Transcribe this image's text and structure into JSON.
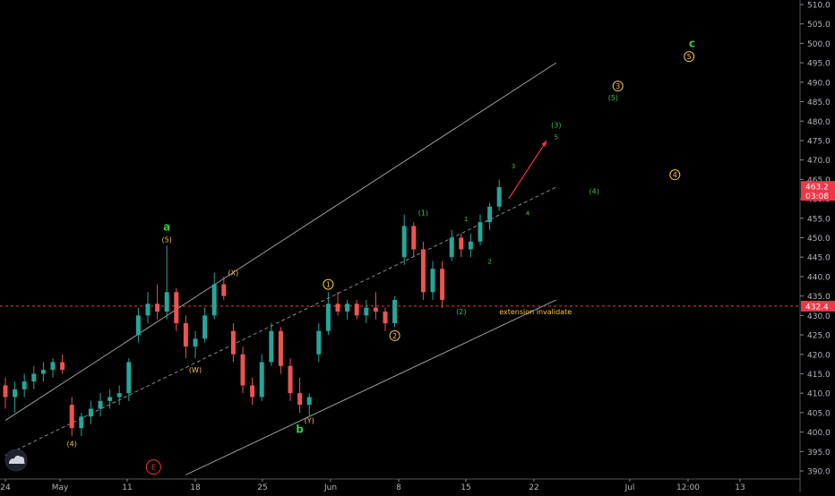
{
  "chart_data": {
    "type": "candlestick",
    "instrument_note": "daily-like price chart with Elliott wave annotations",
    "y_axis": {
      "ticks": [
        390,
        395,
        400,
        405,
        410,
        415,
        420,
        425,
        430,
        435,
        440,
        445,
        450,
        455,
        460,
        465,
        470,
        475,
        480,
        485,
        490,
        495,
        500,
        505,
        510
      ],
      "tick_labels": [
        "390.0",
        "395.0",
        "400.0",
        "405.0",
        "410.0",
        "415.0",
        "420.0",
        "425.0",
        "430.0",
        "435.0",
        "440.0",
        "445.0",
        "450.0",
        "455.0",
        "460.0",
        "465.0",
        "470.0",
        "475.0",
        "480.0",
        "485.0",
        "490.0",
        "495.0",
        "500.0",
        "505.0",
        "510.0"
      ],
      "range": [
        389,
        511
      ]
    },
    "x_axis": {
      "tick_labels": [
        "24",
        "May",
        "11",
        "18",
        "25",
        "Jun",
        "8",
        "15",
        "22",
        "Jul",
        "12:00",
        "13"
      ]
    },
    "last_price": {
      "value": 463.2,
      "label": "463.2",
      "countdown": "03:08"
    },
    "horizontal_level": {
      "value": 432.4,
      "label": "432.4"
    },
    "candles": [
      {
        "t": 0,
        "o": 412,
        "h": 414,
        "l": 406,
        "c": 409
      },
      {
        "t": 1,
        "o": 409,
        "h": 413,
        "l": 405,
        "c": 411
      },
      {
        "t": 2,
        "o": 411,
        "h": 415,
        "l": 409,
        "c": 413
      },
      {
        "t": 3,
        "o": 413,
        "h": 417,
        "l": 411,
        "c": 415
      },
      {
        "t": 4,
        "o": 415,
        "h": 418,
        "l": 413,
        "c": 416
      },
      {
        "t": 5,
        "o": 416,
        "h": 419,
        "l": 414,
        "c": 418
      },
      {
        "t": 6,
        "o": 418,
        "h": 420,
        "l": 415,
        "c": 416
      },
      {
        "t": 7,
        "o": 407,
        "h": 409,
        "l": 399,
        "c": 401
      },
      {
        "t": 8,
        "o": 401,
        "h": 405,
        "l": 399,
        "c": 404
      },
      {
        "t": 9,
        "o": 404,
        "h": 408,
        "l": 402,
        "c": 406
      },
      {
        "t": 10,
        "o": 406,
        "h": 410,
        "l": 404,
        "c": 408
      },
      {
        "t": 11,
        "o": 408,
        "h": 411,
        "l": 406,
        "c": 409
      },
      {
        "t": 12,
        "o": 409,
        "h": 412,
        "l": 407,
        "c": 410
      },
      {
        "t": 13,
        "o": 410,
        "h": 419,
        "l": 408,
        "c": 418
      },
      {
        "t": 14,
        "o": 425,
        "h": 432,
        "l": 423,
        "c": 430
      },
      {
        "t": 15,
        "o": 430,
        "h": 436,
        "l": 428,
        "c": 433
      },
      {
        "t": 16,
        "o": 433,
        "h": 438,
        "l": 429,
        "c": 431
      },
      {
        "t": 17,
        "o": 431,
        "h": 448,
        "l": 429,
        "c": 436
      },
      {
        "t": 18,
        "o": 436,
        "h": 437,
        "l": 426,
        "c": 428
      },
      {
        "t": 19,
        "o": 428,
        "h": 430,
        "l": 419,
        "c": 422
      },
      {
        "t": 20,
        "o": 422,
        "h": 426,
        "l": 419,
        "c": 424
      },
      {
        "t": 21,
        "o": 424,
        "h": 432,
        "l": 423,
        "c": 430
      },
      {
        "t": 22,
        "o": 430,
        "h": 441,
        "l": 429,
        "c": 438
      },
      {
        "t": 23,
        "o": 438,
        "h": 440,
        "l": 434,
        "c": 435
      },
      {
        "t": 24,
        "o": 426,
        "h": 428,
        "l": 418,
        "c": 420
      },
      {
        "t": 25,
        "o": 420,
        "h": 422,
        "l": 410,
        "c": 412
      },
      {
        "t": 26,
        "o": 412,
        "h": 414,
        "l": 407,
        "c": 409
      },
      {
        "t": 27,
        "o": 409,
        "h": 420,
        "l": 408,
        "c": 418
      },
      {
        "t": 28,
        "o": 418,
        "h": 428,
        "l": 417,
        "c": 426
      },
      {
        "t": 29,
        "o": 426,
        "h": 427,
        "l": 415,
        "c": 417
      },
      {
        "t": 30,
        "o": 417,
        "h": 419,
        "l": 408,
        "c": 410
      },
      {
        "t": 31,
        "o": 410,
        "h": 414,
        "l": 405,
        "c": 407
      },
      {
        "t": 32,
        "o": 407,
        "h": 410,
        "l": 404,
        "c": 409
      },
      {
        "t": 33,
        "o": 420,
        "h": 428,
        "l": 418,
        "c": 426
      },
      {
        "t": 34,
        "o": 426,
        "h": 436,
        "l": 425,
        "c": 433
      },
      {
        "t": 35,
        "o": 433,
        "h": 436,
        "l": 430,
        "c": 431
      },
      {
        "t": 36,
        "o": 431,
        "h": 434,
        "l": 429,
        "c": 433
      },
      {
        "t": 37,
        "o": 433,
        "h": 434,
        "l": 429,
        "c": 430
      },
      {
        "t": 38,
        "o": 430,
        "h": 434,
        "l": 428,
        "c": 432
      },
      {
        "t": 39,
        "o": 432,
        "h": 436,
        "l": 429,
        "c": 431
      },
      {
        "t": 40,
        "o": 431,
        "h": 432,
        "l": 426,
        "c": 428
      },
      {
        "t": 41,
        "o": 428,
        "h": 435,
        "l": 427,
        "c": 434
      },
      {
        "t": 42,
        "o": 445,
        "h": 456,
        "l": 443,
        "c": 453
      },
      {
        "t": 43,
        "o": 453,
        "h": 454,
        "l": 445,
        "c": 447
      },
      {
        "t": 44,
        "o": 447,
        "h": 449,
        "l": 434,
        "c": 436
      },
      {
        "t": 45,
        "o": 436,
        "h": 444,
        "l": 434,
        "c": 442
      },
      {
        "t": 46,
        "o": 442,
        "h": 444,
        "l": 432,
        "c": 434
      },
      {
        "t": 47,
        "o": 445,
        "h": 452,
        "l": 444,
        "c": 450
      },
      {
        "t": 48,
        "o": 450,
        "h": 451,
        "l": 445,
        "c": 447
      },
      {
        "t": 49,
        "o": 447,
        "h": 451,
        "l": 445,
        "c": 449
      },
      {
        "t": 50,
        "o": 449,
        "h": 456,
        "l": 448,
        "c": 454
      },
      {
        "t": 51,
        "o": 454,
        "h": 459,
        "l": 452,
        "c": 458
      },
      {
        "t": 52,
        "o": 458,
        "h": 465,
        "l": 457,
        "c": 463
      }
    ],
    "channel_lines": [
      {
        "from": {
          "t": 0,
          "v": 403
        },
        "to": {
          "t": 58,
          "v": 495
        },
        "style": "solid",
        "color": "#9e9e9e"
      },
      {
        "from": {
          "t": 0,
          "v": 394
        },
        "to": {
          "t": 58,
          "v": 463
        },
        "style": "dashed",
        "color": "#8a8a8a"
      },
      {
        "from": {
          "t": 19,
          "v": 389
        },
        "to": {
          "t": 58,
          "v": 434
        },
        "style": "solid",
        "color": "#9e9e9e"
      }
    ],
    "projection_arrow": {
      "from": {
        "t": 53,
        "v": 460
      },
      "to": {
        "t": 57,
        "v": 475
      },
      "color": "#f23645"
    },
    "wave_labels": [
      {
        "text": "a",
        "t": 17,
        "v": 452.5,
        "color": "#2ecc40",
        "size": "large"
      },
      {
        "text": "(5)",
        "t": 17,
        "v": 449.5,
        "color": "#f5c542",
        "size": "small"
      },
      {
        "text": "(X)",
        "t": 24,
        "v": 441,
        "color": "#f5c542",
        "size": "small"
      },
      {
        "text": "(W)",
        "t": 20,
        "v": 416,
        "color": "#f5c542",
        "size": "small"
      },
      {
        "text": "(4)",
        "t": 7,
        "v": 397,
        "color": "#f5c542",
        "size": "small"
      },
      {
        "text": "b",
        "t": 31,
        "v": 400.5,
        "color": "#2ecc40",
        "size": "large"
      },
      {
        "text": "(Y)",
        "t": 32,
        "v": 403,
        "color": "#f5c542",
        "size": "small"
      },
      {
        "text": "1",
        "t": 34,
        "v": 438,
        "color": "#f5c542",
        "size": "circle"
      },
      {
        "text": "2",
        "t": 41,
        "v": 424.8,
        "color": "#f5c542",
        "size": "circle"
      },
      {
        "text": "(1)",
        "t": 44,
        "v": 456.5,
        "color": "#2ecc40",
        "size": "small"
      },
      {
        "text": "(2)",
        "t": 48,
        "v": 431,
        "color": "#2ecc40",
        "size": "small"
      },
      {
        "text": "extension invalidate",
        "t": 52,
        "v": 431,
        "color": "#f5c542",
        "size": "text"
      },
      {
        "text": "1",
        "t": 48.5,
        "v": 455,
        "color": "#2ecc40",
        "size": "tiny"
      },
      {
        "text": "2",
        "t": 51,
        "v": 444,
        "color": "#2ecc40",
        "size": "tiny"
      },
      {
        "text": "3",
        "t": 53.5,
        "v": 468.5,
        "color": "#2ecc40",
        "size": "tiny"
      },
      {
        "text": "4",
        "t": 55,
        "v": 456.5,
        "color": "#2ecc40",
        "size": "tiny"
      },
      {
        "text": "5",
        "t": 58,
        "v": 476,
        "color": "#2ecc40",
        "size": "tiny"
      },
      {
        "text": "(3)",
        "t": 58,
        "v": 479,
        "color": "#2ecc40",
        "size": "small"
      },
      {
        "text": "(4)",
        "t": 62,
        "v": 462,
        "color": "#2ecc40",
        "size": "small"
      },
      {
        "text": "(5)",
        "t": 64,
        "v": 486,
        "color": "#2ecc40",
        "size": "small"
      },
      {
        "text": "3",
        "t": 64.5,
        "v": 489,
        "color": "#f5c542",
        "size": "circle"
      },
      {
        "text": "4",
        "t": 70.5,
        "v": 466.2,
        "color": "#f5c542",
        "size": "circle"
      },
      {
        "text": "5",
        "t": 72,
        "v": 496.6,
        "color": "#f5c542",
        "size": "circle"
      },
      {
        "text": "c",
        "t": 72.3,
        "v": 499.8,
        "color": "#2ecc40",
        "size": "large"
      },
      {
        "text": "E",
        "t": 15.6,
        "v": 391,
        "color": "#f23645",
        "size": "circle-red"
      }
    ],
    "colors": {
      "up": "#26a69a",
      "down": "#ef5350",
      "background": "#000000",
      "axis_text": "#b2b5be",
      "price_tag": "#f23645"
    },
    "grid": false,
    "legend": "none"
  }
}
